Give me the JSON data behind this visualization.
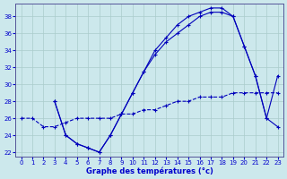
{
  "xlabel": "Graphe des températures (°c)",
  "ylabel": "",
  "background_color": "#cce8ec",
  "grid_color": "#aacccc",
  "line_color": "#0000bb",
  "xlim": [
    -0.5,
    23.5
  ],
  "ylim": [
    21.5,
    39.5
  ],
  "xticks": [
    0,
    1,
    2,
    3,
    4,
    5,
    6,
    7,
    8,
    9,
    10,
    11,
    12,
    13,
    14,
    15,
    16,
    17,
    18,
    19,
    20,
    21,
    22,
    23
  ],
  "yticks": [
    22,
    24,
    26,
    28,
    30,
    32,
    34,
    36,
    38
  ],
  "curve1_x": [
    3,
    4,
    5,
    6,
    7,
    8,
    9,
    10,
    11,
    12,
    13,
    14,
    15,
    16,
    17,
    18,
    19,
    20,
    21,
    22,
    23
  ],
  "curve1_y": [
    28,
    24,
    23,
    22.5,
    22,
    24,
    26.5,
    29,
    31.5,
    34,
    35.5,
    37,
    38,
    38.5,
    39,
    39,
    38,
    34.5,
    31,
    26,
    31
  ],
  "curve2_x": [
    3,
    4,
    5,
    6,
    7,
    8,
    9,
    10,
    11,
    12,
    13,
    14,
    15,
    16,
    17,
    18,
    19,
    20,
    21,
    22,
    23
  ],
  "curve2_y": [
    28,
    24,
    23,
    22.5,
    22,
    24,
    26.5,
    29,
    31.5,
    33.5,
    35,
    36,
    37,
    38,
    38.5,
    38.5,
    38,
    34.5,
    31,
    26,
    25
  ],
  "curve3_x": [
    0,
    1,
    2,
    3,
    4,
    5,
    6,
    7,
    8,
    9,
    10,
    11,
    12,
    13,
    14,
    15,
    16,
    17,
    18,
    19,
    20,
    21,
    22,
    23
  ],
  "curve3_y": [
    26,
    26,
    25,
    25,
    25.5,
    26,
    26,
    26,
    26,
    26.5,
    26.5,
    27,
    27,
    27.5,
    28,
    28,
    28.5,
    28.5,
    28.5,
    29,
    29,
    29,
    29,
    29
  ]
}
